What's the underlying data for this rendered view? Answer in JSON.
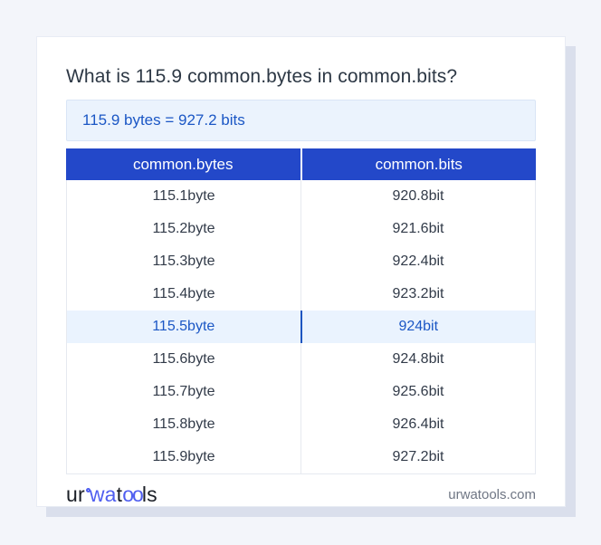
{
  "title": "What is 115.9 common.bytes in common.bits?",
  "answer": "115.9 bytes = 927.2 bits",
  "table": {
    "headers": [
      "common.bytes",
      "common.bits"
    ],
    "highlighted_index": 4,
    "rows": [
      [
        "115.1byte",
        "920.8bit"
      ],
      [
        "115.2byte",
        "921.6bit"
      ],
      [
        "115.3byte",
        "922.4bit"
      ],
      [
        "115.4byte",
        "923.2bit"
      ],
      [
        "115.5byte",
        "924bit"
      ],
      [
        "115.6byte",
        "924.8bit"
      ],
      [
        "115.7byte",
        "925.6bit"
      ],
      [
        "115.8byte",
        "926.4bit"
      ],
      [
        "115.9byte",
        "927.2bit"
      ]
    ]
  },
  "footer": {
    "logo": {
      "prefix": "ur",
      "blue1": "wa",
      "mid": "t",
      "blue2": "oo",
      "suffix": "ls"
    },
    "domain": "urwatools.com"
  },
  "colors": {
    "header_blue": "#2348c9",
    "answer_blue": "#1b57c5",
    "highlight_bg": "#eaf3fe",
    "logo_blue": "#4f5ef0",
    "page_bg": "#f3f5fa"
  }
}
